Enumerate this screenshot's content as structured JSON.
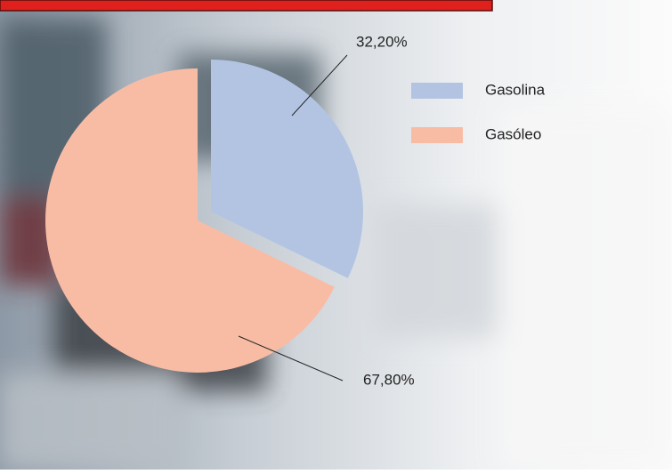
{
  "chart_data": {
    "type": "pie",
    "categories": [
      "Gasolina",
      "Gasóleo"
    ],
    "values": [
      32.2,
      67.8
    ],
    "value_labels": [
      "32,20%",
      "67,80%"
    ],
    "colors": [
      "#b3c4e3",
      "#f8bca5"
    ],
    "legend": "top-right"
  }
}
